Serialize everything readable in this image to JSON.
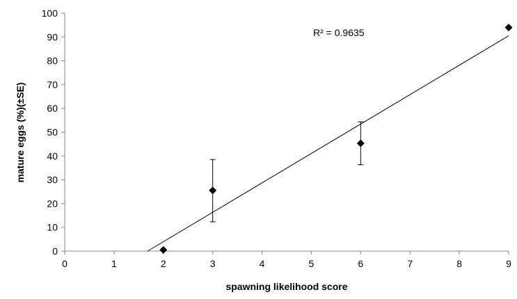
{
  "chart_data": {
    "type": "scatter",
    "xlabel": "spawning likelihood score",
    "ylabel": "mature eggs (%)(±SE)",
    "xlim": [
      0,
      9
    ],
    "ylim": [
      0,
      100
    ],
    "x_ticks": [
      "0",
      "1",
      "2",
      "3",
      "4",
      "5",
      "6",
      "7",
      "8",
      "9"
    ],
    "y_ticks": [
      "0",
      "10",
      "20",
      "30",
      "40",
      "50",
      "60",
      "70",
      "80",
      "90",
      "100"
    ],
    "grid": false,
    "legend": "none",
    "points": [
      {
        "x": 2,
        "y": 0.5,
        "se_low": 0.5,
        "se_high": 0.5
      },
      {
        "x": 3,
        "y": 25.5,
        "se_low": 12.3,
        "se_high": 38.5
      },
      {
        "x": 6,
        "y": 45.3,
        "se_low": 36.3,
        "se_high": 54.3
      },
      {
        "x": 9,
        "y": 94,
        "se_low": 94,
        "se_high": 94
      }
    ],
    "trendline": {
      "type": "linear",
      "from": [
        1.68,
        0
      ],
      "to": [
        9,
        90.5
      ]
    },
    "annotation": "R² = 0.9635",
    "marker_color": "#000000"
  }
}
